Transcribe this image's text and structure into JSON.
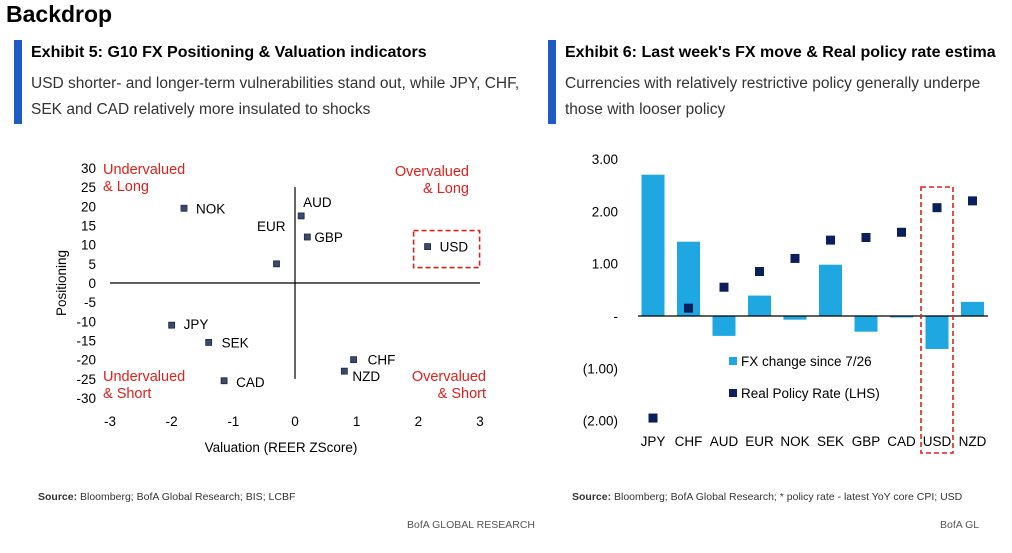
{
  "page": {
    "title": "Backdrop"
  },
  "exhibit5": {
    "title": "Exhibit 5: G10 FX Positioning & Valuation indicators",
    "subtitle_line1": "USD shorter- and longer-term vulnerabilities stand out, while JPY, CHF,",
    "subtitle_line2": "SEK and CAD relatively more insulated to shocks",
    "source_label": "Source:",
    "source_text": " Bloomberg; BofA Global Research; BIS; LCBF",
    "brand": "BofA GLOBAL RESEARCH",
    "colors": {
      "marker": "#3b4a6b",
      "quadrant_text": "#e0201b",
      "highlight": "#e0201b"
    }
  },
  "exhibit6": {
    "title": "Exhibit 6: Last week's FX move & Real policy rate estima",
    "subtitle_line1": "Currencies with relatively restrictive policy generally underpe",
    "subtitle_line2": "those with looser policy",
    "source_label": "Source:",
    "source_text": " Bloomberg; BofA Global Research; * policy rate - latest YoY core CPI; USD",
    "brand": "BofA GL",
    "colors": {
      "bar": "#1ea7e1",
      "marker": "#0b1f5c",
      "highlight": "#e0201b"
    }
  },
  "chart_data": [
    {
      "type": "scatter",
      "xlabel": "Valuation (REER ZScore)",
      "ylabel": "Positioning",
      "xlim": [
        -3,
        3
      ],
      "ylim": [
        -30,
        30
      ],
      "x_ticks": [
        "-3",
        "-2",
        "-1",
        "0",
        "1",
        "2",
        "3"
      ],
      "y_ticks": [
        "30",
        "25",
        "20",
        "15",
        "10",
        "5",
        "0",
        "-5",
        "-10",
        "-15",
        "-20",
        "-25",
        "-30"
      ],
      "points": [
        {
          "label": "NOK",
          "x": -1.8,
          "y": 19.5
        },
        {
          "label": "AUD",
          "x": 0.1,
          "y": 17.5
        },
        {
          "label": "GBP",
          "x": 0.2,
          "y": 12
        },
        {
          "label": "EUR",
          "x": -0.3,
          "y": 5
        },
        {
          "label": "USD",
          "x": 2.15,
          "y": 9.5
        },
        {
          "label": "JPY",
          "x": -2.0,
          "y": -11
        },
        {
          "label": "SEK",
          "x": -1.4,
          "y": -15.5
        },
        {
          "label": "CAD",
          "x": -1.15,
          "y": -25.5
        },
        {
          "label": "CHF",
          "x": 0.95,
          "y": -20
        },
        {
          "label": "NZD",
          "x": 0.8,
          "y": -23
        }
      ],
      "quadrants": {
        "top_left": [
          "Undervalued",
          "& Long"
        ],
        "top_right": [
          "Overvalued",
          "& Long"
        ],
        "bottom_left": [
          "Undervalued",
          "& Short"
        ],
        "bottom_right": [
          "Overvalued",
          "& Short"
        ]
      },
      "highlight": "USD"
    },
    {
      "type": "bar",
      "categories": [
        "JPY",
        "CHF",
        "AUD",
        "EUR",
        "NOK",
        "SEK",
        "GBP",
        "CAD",
        "USD",
        "NZD"
      ],
      "ylim": [
        -2.0,
        3.0
      ],
      "y_ticks": [
        "3.00",
        "2.00",
        "1.00",
        "-",
        "(1.00)",
        "(2.00)"
      ],
      "series": [
        {
          "name": "FX change since 7/26",
          "kind": "bar",
          "values": [
            2.7,
            1.42,
            -0.38,
            0.39,
            -0.07,
            0.98,
            -0.3,
            -0.02,
            -0.63,
            0.27
          ]
        },
        {
          "name": "Real Policy Rate (LHS)",
          "kind": "marker",
          "values": [
            -1.95,
            0.15,
            0.55,
            0.85,
            1.1,
            1.45,
            1.5,
            1.6,
            2.07,
            2.2
          ]
        }
      ],
      "highlight": "USD"
    }
  ]
}
